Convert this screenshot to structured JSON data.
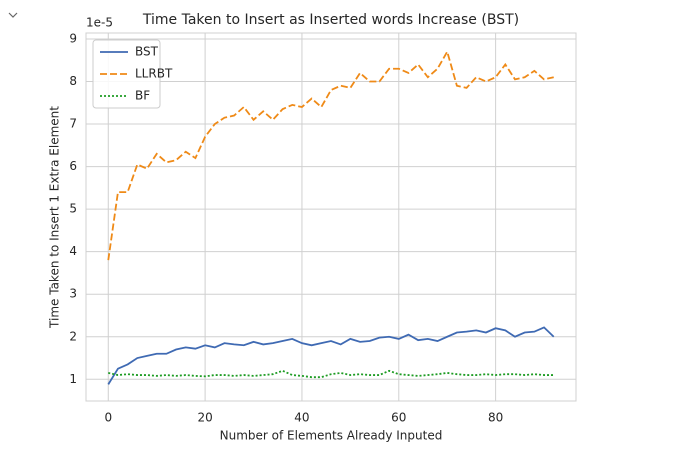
{
  "chart_data": {
    "type": "line",
    "title": "Time Taken to Insert as Inserted words Increase (BST)",
    "x_label": "Number of Elements Already Inputed",
    "y_label": "Time Taken to Insert 1 Extra Element",
    "y_offset_label": "1e-5",
    "x": [
      0,
      2,
      4,
      6,
      8,
      10,
      12,
      14,
      16,
      18,
      20,
      22,
      24,
      26,
      28,
      30,
      32,
      34,
      36,
      38,
      40,
      42,
      44,
      46,
      48,
      50,
      52,
      54,
      56,
      58,
      60,
      62,
      64,
      66,
      68,
      70,
      72,
      74,
      76,
      78,
      80,
      82,
      84,
      86,
      88,
      90,
      92
    ],
    "series": [
      {
        "name": "BST",
        "color": "#3f6ab3",
        "dash": "solid",
        "values": [
          0.88,
          1.25,
          1.35,
          1.5,
          1.55,
          1.6,
          1.6,
          1.7,
          1.75,
          1.72,
          1.8,
          1.75,
          1.85,
          1.82,
          1.8,
          1.88,
          1.82,
          1.85,
          1.9,
          1.95,
          1.85,
          1.8,
          1.85,
          1.9,
          1.82,
          1.95,
          1.88,
          1.9,
          1.98,
          2.0,
          1.95,
          2.05,
          1.92,
          1.95,
          1.9,
          2.0,
          2.1,
          2.12,
          2.15,
          2.1,
          2.2,
          2.15,
          2.0,
          2.1,
          2.12,
          2.22,
          2.0
        ]
      },
      {
        "name": "LLRBT",
        "color": "#ef8a17",
        "dash": "dashed",
        "values": [
          3.8,
          5.4,
          5.4,
          6.05,
          5.95,
          6.3,
          6.1,
          6.15,
          6.35,
          6.2,
          6.7,
          7.0,
          7.15,
          7.2,
          7.4,
          7.1,
          7.3,
          7.1,
          7.35,
          7.45,
          7.4,
          7.6,
          7.4,
          7.8,
          7.9,
          7.85,
          8.2,
          8.0,
          8.0,
          8.3,
          8.3,
          8.2,
          8.4,
          8.1,
          8.3,
          8.7,
          7.9,
          7.85,
          8.1,
          8.0,
          8.1,
          8.4,
          8.05,
          8.1,
          8.25,
          8.05,
          8.1
        ]
      },
      {
        "name": "BF",
        "color": "#1e9c24",
        "dash": "dotted",
        "values": [
          1.15,
          1.1,
          1.12,
          1.1,
          1.1,
          1.08,
          1.1,
          1.08,
          1.1,
          1.08,
          1.07,
          1.1,
          1.1,
          1.08,
          1.1,
          1.08,
          1.1,
          1.12,
          1.2,
          1.1,
          1.08,
          1.05,
          1.05,
          1.12,
          1.15,
          1.1,
          1.12,
          1.1,
          1.1,
          1.2,
          1.12,
          1.1,
          1.08,
          1.1,
          1.12,
          1.15,
          1.12,
          1.1,
          1.1,
          1.12,
          1.1,
          1.12,
          1.12,
          1.1,
          1.12,
          1.1,
          1.1
        ]
      }
    ],
    "xlim": [
      -4.6,
      96.6
    ],
    "ylim": [
      0.49,
      9.14
    ],
    "xticks": [
      0,
      20,
      40,
      60,
      80
    ],
    "yticks": [
      1,
      2,
      3,
      4,
      5,
      6,
      7,
      8,
      9
    ],
    "grid": true,
    "legend": "upper-left"
  }
}
